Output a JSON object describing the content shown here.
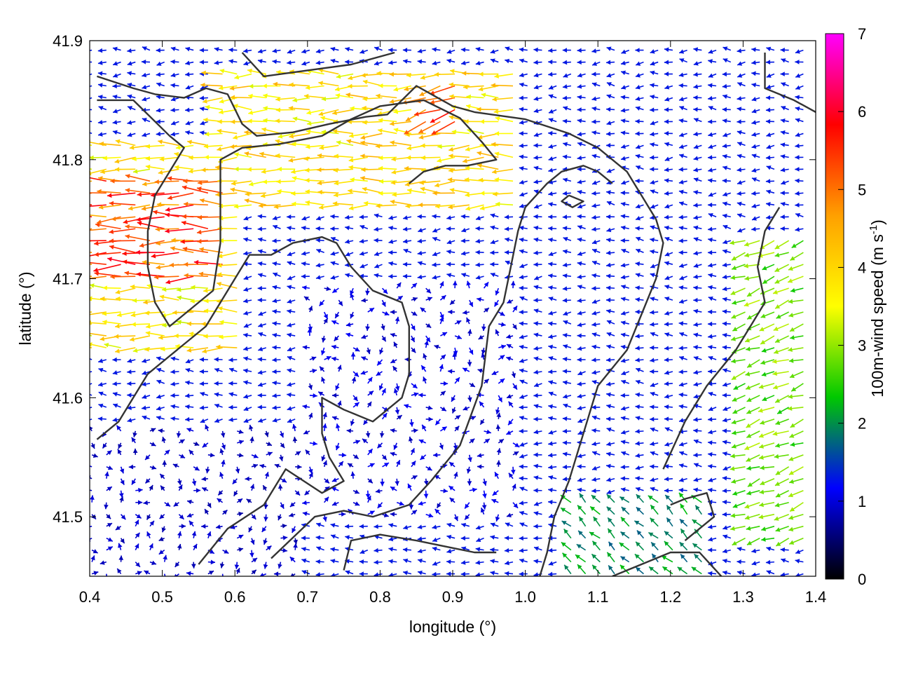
{
  "chart_data": {
    "type": "vector-field",
    "xlabel": "longitude (°)",
    "ylabel": "latitude (°)",
    "xlim": [
      0.4,
      1.4
    ],
    "ylim": [
      41.45,
      41.9
    ],
    "xticks": [
      "0.4",
      "0.5",
      "0.6",
      "0.7",
      "0.8",
      "0.9",
      "1.0",
      "1.1",
      "1.2",
      "1.3",
      "1.4"
    ],
    "yticks": [
      "41.5",
      "41.6",
      "41.7",
      "41.8",
      "41.9"
    ],
    "colorbar": {
      "label_main": "100m-wind speed (m s",
      "label_sup": "-1",
      "label_end": ")",
      "range": [
        0,
        7
      ],
      "ticks": [
        "0",
        "1",
        "2",
        "3",
        "4",
        "5",
        "6",
        "7"
      ],
      "colors": [
        "#000000",
        "#0000ff",
        "#00c800",
        "#ffff00",
        "#ffa000",
        "#ff0000",
        "#ff00ff"
      ]
    },
    "wind_regions": [
      {
        "lon": [
          0.4,
          0.6
        ],
        "lat": [
          41.7,
          41.79
        ],
        "speed": 5.2,
        "direction": "westward"
      },
      {
        "lon": [
          0.4,
          0.62
        ],
        "lat": [
          41.64,
          41.82
        ],
        "speed": 3.8,
        "direction": "westward"
      },
      {
        "lon": [
          0.58,
          1.0
        ],
        "lat": [
          41.76,
          41.88
        ],
        "speed": 3.9,
        "direction": "westward"
      },
      {
        "lon": [
          0.85,
          0.92
        ],
        "lat": [
          41.83,
          41.87
        ],
        "speed": 5.0,
        "direction": "west-southwest"
      },
      {
        "lon": [
          1.3,
          1.4
        ],
        "lat": [
          41.48,
          41.74
        ],
        "speed": 2.8,
        "direction": "west-southwest"
      },
      {
        "lon": [
          0.4,
          0.7
        ],
        "lat": [
          41.45,
          41.58
        ],
        "speed": 0.9,
        "direction": "variable"
      },
      {
        "lon": [
          0.7,
          1.0
        ],
        "lat": [
          41.5,
          41.7
        ],
        "speed": 1.0,
        "direction": "variable"
      },
      {
        "lon": [
          1.05,
          1.25
        ],
        "lat": [
          41.45,
          41.52
        ],
        "speed": 2.0,
        "direction": "northwest"
      }
    ],
    "contours": [
      [
        [
          0.41,
          41.87
        ],
        [
          0.46,
          41.86
        ],
        [
          0.49,
          41.855
        ],
        [
          0.53,
          41.852
        ],
        [
          0.56,
          41.86
        ],
        [
          0.59,
          41.855
        ],
        [
          0.61,
          41.83
        ],
        [
          0.63,
          41.82
        ],
        [
          0.68,
          41.823
        ],
        [
          0.73,
          41.83
        ],
        [
          0.78,
          41.836
        ],
        [
          0.81,
          41.838
        ],
        [
          0.85,
          41.862
        ],
        [
          0.9,
          41.845
        ],
        [
          0.93,
          41.84
        ],
        [
          1.0,
          41.834
        ],
        [
          1.06,
          41.822
        ],
        [
          1.1,
          41.81
        ],
        [
          1.14,
          41.79
        ],
        [
          1.16,
          41.77
        ],
        [
          1.18,
          41.75
        ],
        [
          1.19,
          41.73
        ],
        [
          1.18,
          41.7
        ],
        [
          1.16,
          41.67
        ],
        [
          1.14,
          41.64
        ],
        [
          1.1,
          41.61
        ],
        [
          1.08,
          41.57
        ],
        [
          1.06,
          41.53
        ],
        [
          1.04,
          41.5
        ],
        [
          1.03,
          41.47
        ],
        [
          1.02,
          41.45
        ]
      ],
      [
        [
          0.41,
          41.85
        ],
        [
          0.46,
          41.85
        ],
        [
          0.51,
          41.82
        ],
        [
          0.53,
          41.81
        ],
        [
          0.51,
          41.79
        ],
        [
          0.49,
          41.77
        ],
        [
          0.48,
          41.74
        ],
        [
          0.48,
          41.71
        ],
        [
          0.49,
          41.68
        ],
        [
          0.51,
          41.66
        ],
        [
          0.53,
          41.67
        ],
        [
          0.55,
          41.68
        ],
        [
          0.57,
          41.69
        ],
        [
          0.58,
          41.73
        ],
        [
          0.58,
          41.77
        ],
        [
          0.58,
          41.8
        ],
        [
          0.61,
          41.81
        ],
        [
          0.66,
          41.813
        ],
        [
          0.72,
          41.82
        ],
        [
          0.76,
          41.834
        ],
        [
          0.8,
          41.845
        ],
        [
          0.86,
          41.85
        ],
        [
          0.91,
          41.835
        ],
        [
          0.94,
          41.815
        ],
        [
          0.96,
          41.8
        ],
        [
          0.92,
          41.795
        ],
        [
          0.89,
          41.795
        ],
        [
          0.86,
          41.79
        ],
        [
          0.84,
          41.78
        ]
      ],
      [
        [
          0.41,
          41.565
        ],
        [
          0.44,
          41.58
        ],
        [
          0.48,
          41.62
        ],
        [
          0.52,
          41.64
        ],
        [
          0.56,
          41.66
        ],
        [
          0.58,
          41.68
        ],
        [
          0.6,
          41.7
        ],
        [
          0.62,
          41.72
        ],
        [
          0.65,
          41.72
        ],
        [
          0.68,
          41.73
        ],
        [
          0.72,
          41.735
        ],
        [
          0.74,
          41.73
        ],
        [
          0.76,
          41.71
        ],
        [
          0.79,
          41.69
        ],
        [
          0.83,
          41.68
        ],
        [
          0.84,
          41.66
        ],
        [
          0.84,
          41.62
        ],
        [
          0.83,
          41.6
        ],
        [
          0.79,
          41.58
        ],
        [
          0.75,
          41.59
        ],
        [
          0.72,
          41.6
        ],
        [
          0.72,
          41.57
        ],
        [
          0.73,
          41.55
        ],
        [
          0.75,
          41.53
        ],
        [
          0.72,
          41.52
        ],
        [
          0.67,
          41.54
        ],
        [
          0.64,
          41.51
        ],
        [
          0.59,
          41.49
        ],
        [
          0.55,
          41.46
        ]
      ],
      [
        [
          0.65,
          41.465
        ],
        [
          0.71,
          41.5
        ],
        [
          0.75,
          41.505
        ],
        [
          0.79,
          41.5
        ],
        [
          0.84,
          41.51
        ],
        [
          0.87,
          41.53
        ],
        [
          0.91,
          41.56
        ],
        [
          0.94,
          41.61
        ],
        [
          0.95,
          41.66
        ],
        [
          0.97,
          41.68
        ],
        [
          0.98,
          41.71
        ],
        [
          0.99,
          41.74
        ],
        [
          1.0,
          41.76
        ],
        [
          1.03,
          41.78
        ],
        [
          1.05,
          41.79
        ],
        [
          1.08,
          41.795
        ],
        [
          1.1,
          41.79
        ],
        [
          1.12,
          41.78
        ]
      ],
      [
        [
          0.75,
          41.455
        ],
        [
          0.76,
          41.48
        ],
        [
          0.8,
          41.485
        ],
        [
          0.85,
          41.48
        ],
        [
          0.89,
          41.475
        ],
        [
          0.93,
          41.47
        ],
        [
          0.96,
          41.47
        ]
      ],
      [
        [
          1.22,
          41.48
        ],
        [
          1.24,
          41.49
        ],
        [
          1.26,
          41.5
        ],
        [
          1.25,
          41.52
        ],
        [
          1.22,
          41.515
        ],
        [
          1.2,
          41.51
        ]
      ],
      [
        [
          1.12,
          41.45
        ],
        [
          1.16,
          41.46
        ],
        [
          1.2,
          41.47
        ],
        [
          1.24,
          41.47
        ],
        [
          1.27,
          41.45
        ]
      ],
      [
        [
          1.06,
          41.77
        ],
        [
          1.08,
          41.765
        ],
        [
          1.065,
          41.76
        ],
        [
          1.05,
          41.765
        ],
        [
          1.06,
          41.77
        ]
      ],
      [
        [
          1.35,
          41.76
        ],
        [
          1.33,
          41.74
        ],
        [
          1.32,
          41.71
        ],
        [
          1.33,
          41.68
        ],
        [
          1.31,
          41.66
        ],
        [
          1.29,
          41.64
        ],
        [
          1.25,
          41.61
        ],
        [
          1.22,
          41.58
        ],
        [
          1.19,
          41.54
        ]
      ],
      [
        [
          0.61,
          41.89
        ],
        [
          0.64,
          41.87
        ],
        [
          0.7,
          41.875
        ],
        [
          0.76,
          41.88
        ],
        [
          0.82,
          41.89
        ]
      ],
      [
        [
          1.33,
          41.89
        ],
        [
          1.33,
          41.86
        ],
        [
          1.37,
          41.85
        ],
        [
          1.4,
          41.84
        ]
      ]
    ]
  }
}
